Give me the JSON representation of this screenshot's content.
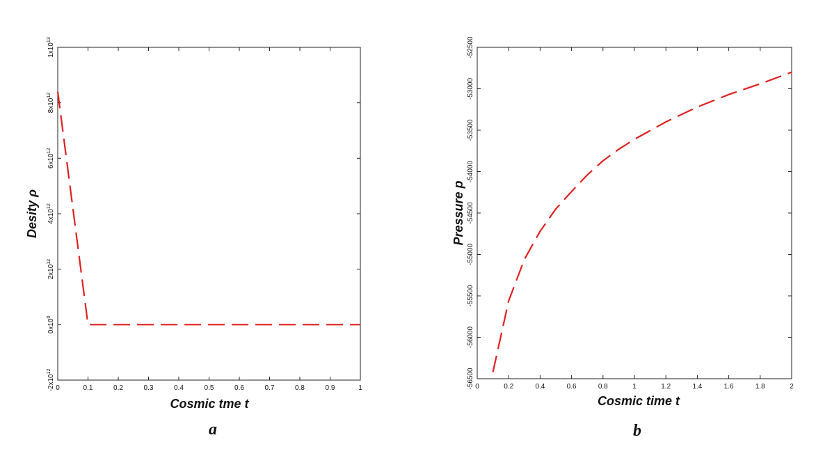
{
  "chart_data": [
    {
      "panel": "a",
      "type": "line",
      "title": "",
      "xlabel": "Cosmic tme t",
      "ylabel": "Desity ρ",
      "xlim": [
        0,
        1
      ],
      "ylim": [
        -2000000000000.0,
        10000000000000.0
      ],
      "xticks": [
        0,
        0.1,
        0.2,
        0.3,
        0.4,
        0.5,
        0.6,
        0.7,
        0.8,
        0.9,
        1
      ],
      "xtick_labels": [
        "0",
        "0.1",
        "0.2",
        "0.3",
        "0.4",
        "0.5",
        "0.6",
        "0.7",
        "0.8",
        "0.9",
        "1"
      ],
      "yticks": [
        -2000000000000.0,
        0,
        2000000000000.0,
        4000000000000.0,
        6000000000000.0,
        8000000000000.0,
        10000000000000.0
      ],
      "ytick_labels": [
        {
          "base": "-2x10",
          "exp": "12"
        },
        {
          "base": "0x10",
          "exp": "0"
        },
        {
          "base": "2x10",
          "exp": "12"
        },
        {
          "base": "4x10",
          "exp": "12"
        },
        {
          "base": "6x10",
          "exp": "12"
        },
        {
          "base": "8x10",
          "exp": "12"
        },
        {
          "base": "1x10",
          "exp": "13"
        }
      ],
      "grid": false,
      "series": [
        {
          "color": "#e02020",
          "style": "dashed",
          "x": [
            0,
            0.1,
            0.2,
            0.3,
            0.4,
            0.5,
            0.6,
            0.7,
            0.8,
            0.9,
            1
          ],
          "y": [
            8400000000000.0,
            0,
            0,
            0,
            0,
            0,
            0,
            0,
            0,
            0,
            0
          ]
        }
      ]
    },
    {
      "panel": "b",
      "type": "line",
      "title": "",
      "xlabel": "Cosmic time t",
      "ylabel": "Pressure p",
      "xlim": [
        0,
        2
      ],
      "ylim": [
        -56500,
        -52500
      ],
      "xticks": [
        0,
        0.2,
        0.4,
        0.6,
        0.8,
        1,
        1.2,
        1.4,
        1.6,
        1.8,
        2
      ],
      "xtick_labels": [
        "0",
        "0.2",
        "0.4",
        "0.6",
        "0.8",
        "1",
        "1.2",
        "1.4",
        "1.6",
        "1.8",
        "2"
      ],
      "yticks": [
        -56500,
        -56000,
        -55500,
        -55000,
        -54500,
        -54000,
        -53500,
        -53000,
        -52500
      ],
      "ytick_labels": [
        "-56500",
        "-56000",
        "-55500",
        "-55000",
        "-54500",
        "-54000",
        "-53500",
        "-53000",
        "-52500"
      ],
      "grid": false,
      "series": [
        {
          "color": "#e02020",
          "style": "dashed",
          "x": [
            0.1,
            0.2,
            0.3,
            0.4,
            0.5,
            0.6,
            0.7,
            0.8,
            0.9,
            1.0,
            1.2,
            1.4,
            1.6,
            1.8,
            2.0
          ],
          "y": [
            -56420,
            -55560,
            -55060,
            -54720,
            -54450,
            -54240,
            -54040,
            -53870,
            -53730,
            -53610,
            -53400,
            -53220,
            -53070,
            -52940,
            -52800
          ]
        }
      ]
    }
  ],
  "panels": {
    "a_label": "a",
    "b_label": "b"
  }
}
